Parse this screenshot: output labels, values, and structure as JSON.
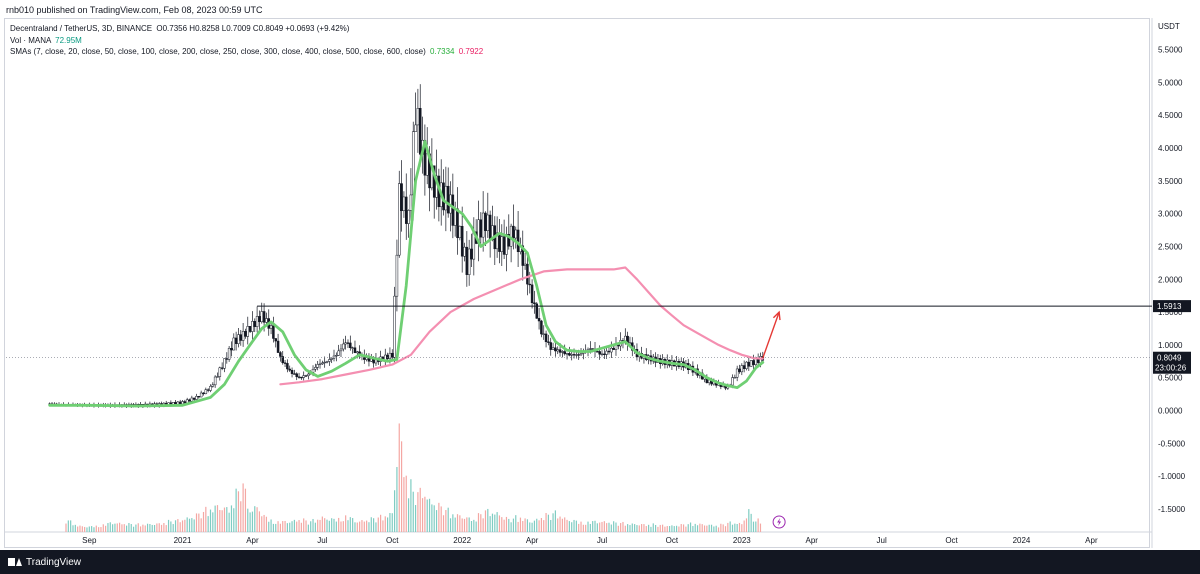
{
  "header": {
    "published_text": "rnb010 published on TradingView.com, Feb 08, 2023 00:59 UTC"
  },
  "legend": {
    "symbol": "Decentraland / TetherUS, 3D, BINANCE",
    "ohlc": "O0.7356 H0.8258 L0.7009 C0.8049 +0.0693 (+9.42%)",
    "volume_label": "Vol · MANA",
    "volume_value": "72.95M",
    "sma_label": "SMAs (7, close, 20, close, 50, close, 100, close, 200, close, 250, close, 300, close, 400, close, 500, close, 600, close)",
    "sma_value_1": "0.7334",
    "sma_value_2": "0.7922"
  },
  "footer": {
    "brand": "TradingView"
  },
  "chart_data": {
    "type": "candlestick",
    "currency_label": "USDT",
    "price_axis": {
      "ticks": [
        "5.5000",
        "5.0000",
        "4.5000",
        "4.0000",
        "3.5000",
        "3.0000",
        "2.5000",
        "2.0000",
        "1.5000",
        "1.0000",
        "0.5000",
        "0.0000",
        "-0.5000",
        "-1.0000",
        "-1.5000"
      ],
      "tick_values": [
        5.5,
        5.0,
        4.5,
        4.0,
        3.5,
        3.0,
        2.5,
        2.0,
        1.5,
        1.0,
        0.5,
        0.0,
        -0.5,
        -1.0,
        -1.5
      ],
      "range": [
        -1.85,
        5.95
      ]
    },
    "time_axis": {
      "labels": [
        "Sep",
        "2021",
        "Apr",
        "Jul",
        "Oct",
        "2022",
        "Apr",
        "Jul",
        "Oct",
        "2023",
        "Apr",
        "Jul",
        "Oct",
        "2024",
        "Apr"
      ],
      "label_months": [
        1,
        5,
        8,
        11,
        14,
        17,
        20,
        23,
        26,
        29,
        32,
        35,
        38,
        41,
        44
      ]
    },
    "time_range_months": [
      0,
      46
    ],
    "colors": {
      "up": "#089981",
      "down": "#131722",
      "candle": "#131722",
      "sma_fast": "#6fcf73",
      "sma_slow": "#f48fb1",
      "horizontal_line": "#131722",
      "arrow": "#e53935",
      "volume_up": "#7fccc2",
      "volume_down": "#f4a7a3"
    },
    "horizontal_line": {
      "value": 1.5913,
      "label": "1.5913"
    },
    "last_price": {
      "value": 0.8049,
      "label": "0.8049",
      "countdown": "23:00:26"
    },
    "price_series": {
      "months": [
        -0.7,
        0.0,
        1.0,
        2.0,
        3.0,
        4.0,
        5.0,
        5.6,
        6.2,
        6.8,
        7.2,
        7.6,
        8.0,
        8.4,
        8.8,
        9.2,
        9.6,
        10.0,
        10.4,
        10.8,
        11.2,
        11.6,
        12.0,
        12.4,
        12.8,
        13.2,
        13.6,
        14.0,
        14.3,
        14.7,
        15.0,
        15.3,
        15.6,
        16.0,
        16.4,
        16.8,
        17.2,
        17.6,
        18.0,
        18.4,
        18.8,
        19.2,
        19.6,
        20.0,
        20.4,
        20.8,
        21.2,
        21.6,
        22.0,
        22.5,
        23.0,
        23.5,
        24.0,
        24.5,
        25.0,
        25.5,
        26.0,
        26.5,
        27.0,
        27.5,
        28.0,
        28.4,
        28.8,
        29.2,
        29.6,
        29.9
      ],
      "close": [
        0.1,
        0.09,
        0.08,
        0.08,
        0.08,
        0.09,
        0.12,
        0.2,
        0.35,
        0.75,
        1.05,
        1.15,
        1.3,
        1.45,
        1.25,
        0.8,
        0.6,
        0.5,
        0.55,
        0.7,
        0.75,
        0.85,
        1.05,
        0.9,
        0.8,
        0.75,
        0.8,
        0.85,
        3.3,
        2.9,
        4.6,
        3.9,
        3.6,
        3.3,
        3.2,
        2.8,
        2.2,
        2.7,
        2.9,
        2.6,
        2.5,
        2.75,
        2.3,
        1.7,
        1.2,
        0.95,
        0.9,
        0.85,
        0.85,
        0.95,
        0.85,
        0.95,
        1.1,
        0.85,
        0.8,
        0.75,
        0.72,
        0.7,
        0.6,
        0.45,
        0.4,
        0.35,
        0.6,
        0.7,
        0.75,
        0.8049
      ]
    },
    "sma_fast": {
      "months": [
        -0.7,
        1.0,
        3.0,
        5.0,
        6.2,
        6.8,
        7.4,
        8.0,
        8.4,
        8.8,
        9.3,
        9.8,
        10.3,
        10.8,
        11.4,
        12.0,
        12.6,
        13.2,
        13.8,
        14.2,
        14.6,
        15.0,
        15.4,
        15.8,
        16.2,
        16.6,
        17.0,
        17.4,
        17.8,
        18.2,
        18.6,
        19.0,
        19.4,
        19.8,
        20.2,
        20.6,
        21.0,
        21.5,
        22.0,
        22.5,
        23.0,
        23.5,
        24.0,
        24.5,
        25.0,
        25.5,
        26.0,
        26.5,
        27.0,
        27.5,
        28.0,
        28.4,
        28.8,
        29.2,
        29.6,
        29.9
      ],
      "values": [
        0.08,
        0.08,
        0.07,
        0.08,
        0.2,
        0.4,
        0.75,
        1.05,
        1.25,
        1.35,
        1.2,
        0.85,
        0.62,
        0.52,
        0.6,
        0.72,
        0.85,
        0.8,
        0.75,
        0.78,
        1.9,
        3.5,
        4.1,
        3.6,
        3.2,
        3.1,
        3.0,
        2.8,
        2.5,
        2.6,
        2.7,
        2.65,
        2.55,
        2.4,
        1.9,
        1.3,
        1.05,
        0.92,
        0.9,
        0.9,
        0.95,
        1.0,
        1.05,
        0.88,
        0.8,
        0.75,
        0.72,
        0.7,
        0.62,
        0.5,
        0.42,
        0.38,
        0.35,
        0.45,
        0.65,
        0.7334
      ]
    },
    "sma_slow": {
      "months": [
        9.2,
        10.0,
        11.0,
        12.0,
        13.0,
        14.0,
        14.8,
        15.6,
        16.5,
        17.5,
        18.5,
        19.5,
        20.5,
        21.5,
        22.5,
        23.5,
        24.0,
        24.5,
        25.0,
        25.5,
        26.0,
        26.5,
        27.0,
        27.5,
        28.0,
        28.5,
        29.0,
        29.5,
        29.9
      ],
      "values": [
        0.4,
        0.43,
        0.48,
        0.55,
        0.62,
        0.7,
        0.85,
        1.2,
        1.5,
        1.7,
        1.85,
        2.0,
        2.12,
        2.15,
        2.15,
        2.15,
        2.18,
        2.0,
        1.8,
        1.6,
        1.45,
        1.3,
        1.2,
        1.1,
        1.0,
        0.92,
        0.85,
        0.8,
        0.7922
      ]
    },
    "volume_series": {
      "months": [
        0.0,
        0.5,
        1.0,
        2.0,
        3.0,
        4.0,
        4.5,
        5.0,
        5.5,
        6.0,
        6.5,
        7.0,
        7.3,
        7.6,
        7.9,
        8.2,
        8.5,
        8.8,
        9.2,
        9.6,
        10.0,
        10.5,
        11.0,
        11.5,
        12.0,
        12.5,
        13.0,
        13.5,
        14.0,
        14.3,
        14.5,
        14.7,
        15.0,
        15.3,
        15.6,
        16.0,
        16.5,
        17.0,
        17.5,
        18.0,
        18.5,
        19.0,
        19.5,
        20.0,
        20.5,
        21.0,
        21.5,
        22.0,
        23.0,
        24.0,
        25.0,
        26.0,
        27.0,
        28.0,
        28.5,
        29.0,
        29.3,
        29.6,
        29.9
      ],
      "values": [
        0.12,
        0.06,
        0.05,
        0.09,
        0.07,
        0.08,
        0.1,
        0.12,
        0.15,
        0.2,
        0.25,
        0.22,
        0.35,
        0.45,
        0.2,
        0.25,
        0.15,
        0.12,
        0.1,
        0.1,
        0.12,
        0.1,
        0.14,
        0.12,
        0.16,
        0.1,
        0.12,
        0.14,
        0.18,
        1.0,
        0.65,
        0.45,
        0.35,
        0.4,
        0.3,
        0.25,
        0.18,
        0.15,
        0.12,
        0.2,
        0.18,
        0.12,
        0.14,
        0.1,
        0.15,
        0.18,
        0.12,
        0.1,
        0.1,
        0.08,
        0.07,
        0.06,
        0.08,
        0.06,
        0.09,
        0.08,
        0.2,
        0.1,
        0.12
      ]
    },
    "annotation_arrow": {
      "from": [
        29.9,
        0.8
      ],
      "to": [
        30.6,
        1.5
      ]
    }
  }
}
